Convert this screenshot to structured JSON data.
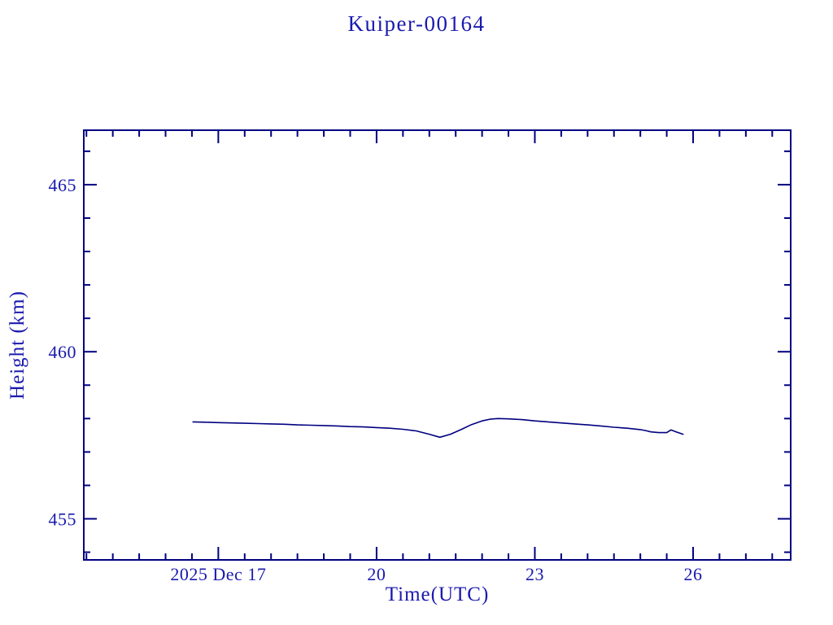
{
  "page": {
    "background": "#ffffff"
  },
  "chart_data": {
    "type": "line",
    "title": "Kuiper-00164",
    "xlabel": "Time(UTC)",
    "ylabel": "Height (km)",
    "xlim": [
      14.45,
      27.85
    ],
    "ylim": [
      453.77,
      466.63
    ],
    "grid": false,
    "legend": null,
    "axis_color": "#000080",
    "line_color": "#000080",
    "text_color": "#1a1aae",
    "x_major_ticks": [
      {
        "value": 17,
        "label": "2025 Dec 17"
      },
      {
        "value": 20,
        "label": "20"
      },
      {
        "value": 23,
        "label": "23"
      },
      {
        "value": 26,
        "label": "26"
      }
    ],
    "x_minor_step": 0.5,
    "y_major_ticks": [
      {
        "value": 455,
        "label": "455"
      },
      {
        "value": 460,
        "label": "460"
      },
      {
        "value": 465,
        "label": "465"
      }
    ],
    "y_minor_step": 1,
    "series": [
      {
        "name": "height",
        "x": [
          16.52,
          16.75,
          17.0,
          17.25,
          17.5,
          17.75,
          18.0,
          18.25,
          18.5,
          18.75,
          19.0,
          19.25,
          19.5,
          19.75,
          20.0,
          20.25,
          20.5,
          20.75,
          21.0,
          21.2,
          21.4,
          21.6,
          21.8,
          22.0,
          22.15,
          22.3,
          22.5,
          22.75,
          23.0,
          23.25,
          23.5,
          23.75,
          24.0,
          24.25,
          24.5,
          24.75,
          25.0,
          25.1,
          25.2,
          25.35,
          25.5,
          25.58,
          25.68,
          25.81
        ],
        "y": [
          457.9,
          457.89,
          457.88,
          457.87,
          457.86,
          457.85,
          457.84,
          457.83,
          457.81,
          457.8,
          457.79,
          457.78,
          457.76,
          457.75,
          457.73,
          457.71,
          457.68,
          457.63,
          457.53,
          457.44,
          457.53,
          457.67,
          457.82,
          457.93,
          457.98,
          458.0,
          457.99,
          457.97,
          457.93,
          457.9,
          457.87,
          457.84,
          457.81,
          457.78,
          457.74,
          457.71,
          457.67,
          457.64,
          457.6,
          457.58,
          457.58,
          457.66,
          457.6,
          457.53
        ]
      }
    ]
  }
}
